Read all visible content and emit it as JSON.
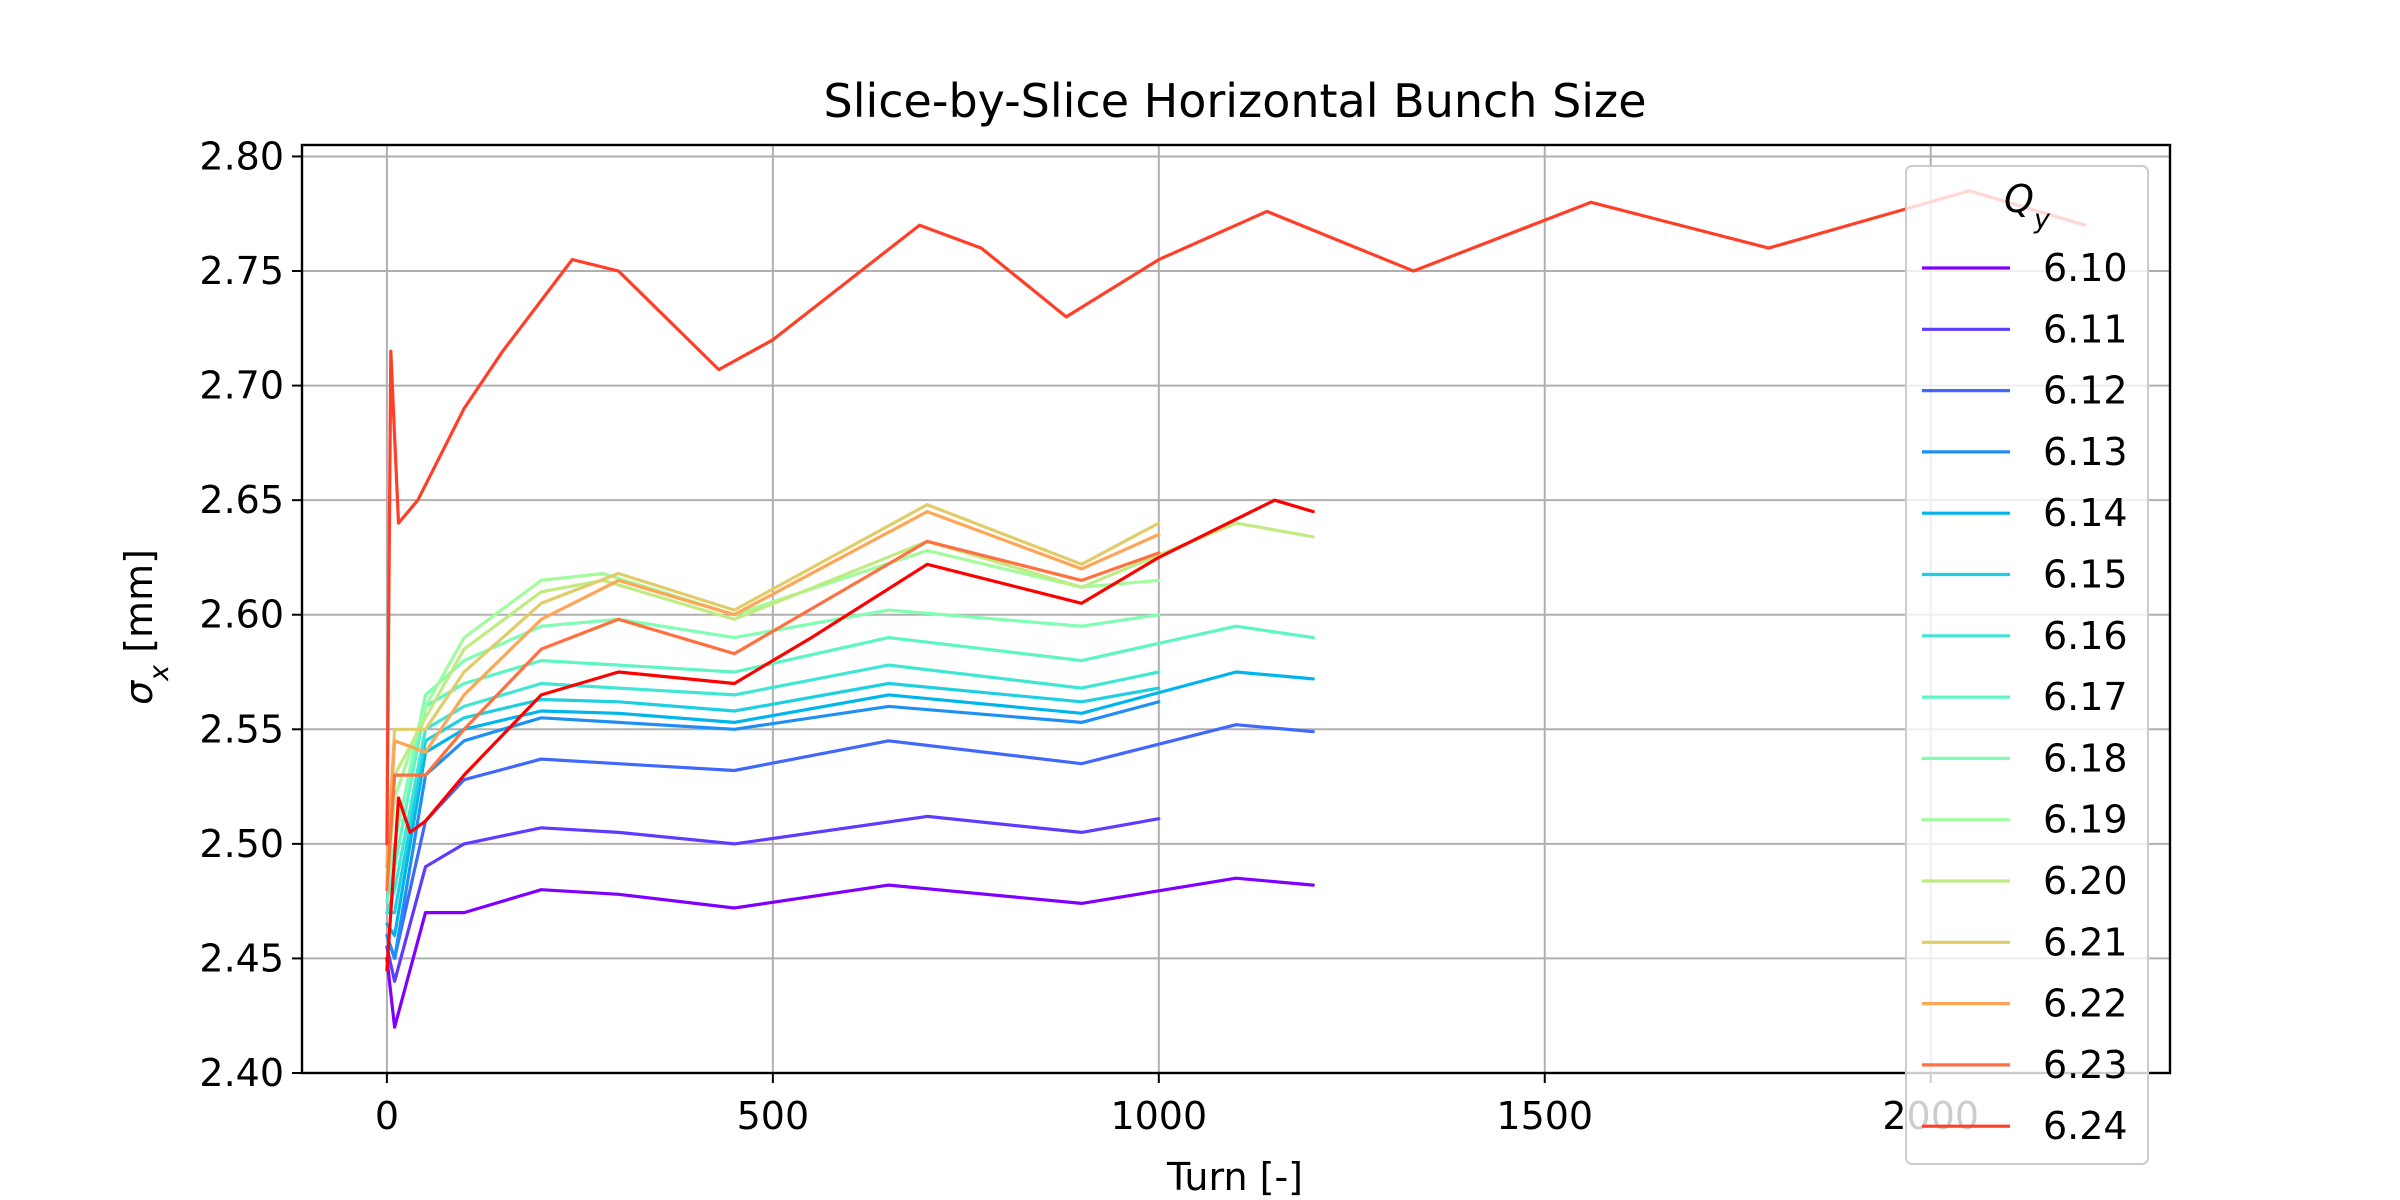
{
  "chart_data": {
    "type": "line",
    "title": "Slice-by-Slice Horizontal Bunch Size",
    "xlabel": "Turn [-]",
    "ylabel_symbol": "σ",
    "ylabel_sub": "x",
    "ylabel_rest": " [mm]",
    "xlim": [
      -110,
      2310
    ],
    "ylim": [
      2.4,
      2.805
    ],
    "xticks": [
      0,
      500,
      1000,
      1500,
      2000
    ],
    "yticks": [
      "2.40",
      "2.45",
      "2.50",
      "2.55",
      "2.60",
      "2.65",
      "2.70",
      "2.75",
      "2.80"
    ],
    "grid": true,
    "legend": {
      "title_symbol": "Q",
      "title_sub": "y",
      "placement": "upper-right"
    },
    "series": [
      {
        "name": "6.10",
        "color": "#8000ff",
        "x": [
          0,
          10,
          50,
          100,
          200,
          300,
          450,
          650,
          900,
          1100,
          1200
        ],
        "y": [
          2.45,
          2.42,
          2.47,
          2.47,
          2.48,
          2.478,
          2.472,
          2.482,
          2.474,
          2.485,
          2.482
        ]
      },
      {
        "name": "6.11",
        "color": "#5e3bfd",
        "x": [
          0,
          10,
          50,
          100,
          200,
          300,
          450,
          700,
          900,
          1000
        ],
        "y": [
          2.455,
          2.44,
          2.49,
          2.5,
          2.507,
          2.505,
          2.5,
          2.512,
          2.505,
          2.511
        ]
      },
      {
        "name": "6.12",
        "color": "#4068fa",
        "x": [
          0,
          10,
          50,
          100,
          200,
          300,
          450,
          650,
          900,
          1100,
          1200
        ],
        "y": [
          2.46,
          2.45,
          2.51,
          2.528,
          2.537,
          2.535,
          2.532,
          2.545,
          2.535,
          2.552,
          2.549
        ]
      },
      {
        "name": "6.13",
        "color": "#208ff3",
        "x": [
          0,
          10,
          50,
          100,
          200,
          300,
          450,
          650,
          900,
          1000
        ],
        "y": [
          2.46,
          2.45,
          2.53,
          2.545,
          2.555,
          2.553,
          2.55,
          2.56,
          2.553,
          2.562
        ]
      },
      {
        "name": "6.14",
        "color": "#00b4ec",
        "x": [
          0,
          10,
          50,
          100,
          200,
          300,
          450,
          650,
          900,
          1100,
          1200
        ],
        "y": [
          2.465,
          2.46,
          2.54,
          2.55,
          2.558,
          2.557,
          2.553,
          2.565,
          2.557,
          2.575,
          2.572
        ]
      },
      {
        "name": "6.15",
        "color": "#1fcfe1",
        "x": [
          0,
          10,
          50,
          100,
          200,
          300,
          450,
          650,
          900,
          1000
        ],
        "y": [
          2.47,
          2.47,
          2.545,
          2.555,
          2.563,
          2.562,
          2.558,
          2.57,
          2.562,
          2.568
        ]
      },
      {
        "name": "6.16",
        "color": "#40e6d4",
        "x": [
          0,
          10,
          50,
          100,
          200,
          300,
          450,
          650,
          900,
          1000
        ],
        "y": [
          2.47,
          2.48,
          2.55,
          2.56,
          2.57,
          2.568,
          2.565,
          2.578,
          2.568,
          2.575
        ]
      },
      {
        "name": "6.17",
        "color": "#5ef5c4",
        "x": [
          0,
          10,
          50,
          100,
          200,
          300,
          450,
          650,
          900,
          1100,
          1200
        ],
        "y": [
          2.475,
          2.49,
          2.56,
          2.57,
          2.58,
          2.578,
          2.575,
          2.59,
          2.58,
          2.595,
          2.59
        ]
      },
      {
        "name": "6.18",
        "color": "#80feb2",
        "x": [
          0,
          10,
          50,
          100,
          200,
          300,
          450,
          650,
          900,
          1000
        ],
        "y": [
          2.48,
          2.5,
          2.565,
          2.58,
          2.595,
          2.598,
          2.59,
          2.602,
          2.595,
          2.6
        ]
      },
      {
        "name": "6.19",
        "color": "#a0fc9c",
        "x": [
          0,
          10,
          50,
          100,
          200,
          280,
          450,
          700,
          900,
          1000
        ],
        "y": [
          2.48,
          2.52,
          2.56,
          2.59,
          2.615,
          2.618,
          2.6,
          2.628,
          2.612,
          2.615
        ]
      },
      {
        "name": "6.20",
        "color": "#c0eb82",
        "x": [
          0,
          10,
          50,
          100,
          200,
          280,
          450,
          700,
          900,
          1100,
          1200
        ],
        "y": [
          2.485,
          2.53,
          2.555,
          2.585,
          2.61,
          2.615,
          2.598,
          2.632,
          2.612,
          2.64,
          2.634
        ]
      },
      {
        "name": "6.21",
        "color": "#e0cd6a",
        "x": [
          0,
          10,
          50,
          100,
          200,
          300,
          450,
          700,
          900,
          1000
        ],
        "y": [
          2.49,
          2.55,
          2.55,
          2.575,
          2.605,
          2.618,
          2.602,
          2.648,
          2.622,
          2.64
        ]
      },
      {
        "name": "6.22",
        "color": "#ffa556",
        "x": [
          0,
          10,
          50,
          100,
          200,
          300,
          450,
          700,
          900,
          1000
        ],
        "y": [
          2.49,
          2.545,
          2.54,
          2.565,
          2.598,
          2.615,
          2.6,
          2.645,
          2.62,
          2.635
        ]
      },
      {
        "name": "6.23",
        "color": "#ff7040",
        "x": [
          0,
          10,
          50,
          100,
          200,
          300,
          450,
          700,
          900,
          1000
        ],
        "y": [
          2.48,
          2.53,
          2.53,
          2.55,
          2.585,
          2.598,
          2.583,
          2.632,
          2.615,
          2.627
        ]
      },
      {
        "name": "6.24",
        "color": "#ff3f27",
        "x": [
          0,
          5,
          15,
          40,
          100,
          150,
          240,
          300,
          430,
          500,
          690,
          770,
          880,
          1000,
          1140,
          1330,
          1560,
          1790,
          2050,
          2200
        ],
        "y": [
          2.5,
          2.715,
          2.64,
          2.65,
          2.69,
          2.715,
          2.755,
          2.75,
          2.707,
          2.72,
          2.77,
          2.76,
          2.73,
          2.755,
          2.776,
          2.75,
          2.78,
          2.76,
          2.785,
          2.77
        ]
      },
      {
        "name": "",
        "color": "#ff0000",
        "x": [
          0,
          15,
          30,
          50,
          100,
          200,
          300,
          450,
          550,
          700,
          900,
          1000,
          1150,
          1200
        ],
        "y": [
          2.445,
          2.52,
          2.505,
          2.51,
          2.53,
          2.565,
          2.575,
          2.57,
          2.59,
          2.622,
          2.605,
          2.625,
          2.65,
          2.645
        ]
      }
    ]
  }
}
